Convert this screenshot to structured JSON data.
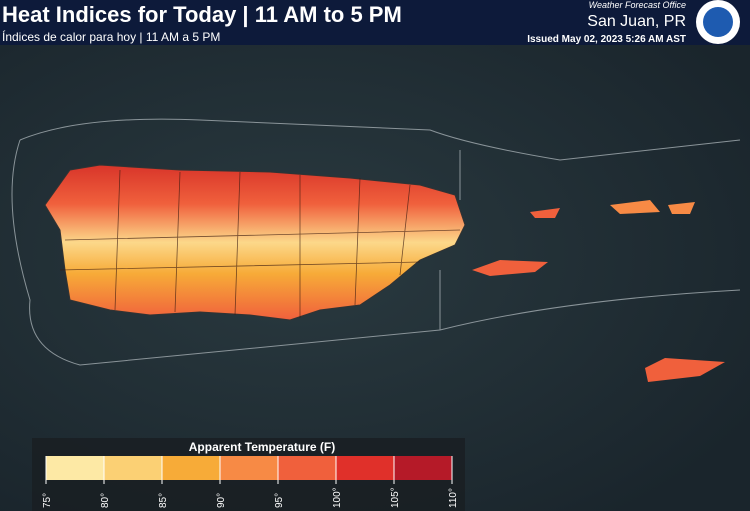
{
  "header": {
    "title": "Heat Indices for Today | 11 AM to 5 PM",
    "subtitle": "Índices de calor para hoy | 11 AM a 5 PM",
    "office": "Weather Forecast Office",
    "location": "San Juan, PR",
    "issued": "Issued May 02, 2023 5:26 AM AST"
  },
  "legend": {
    "title": "Apparent Temperature (F)",
    "colors": [
      "#fde9a5",
      "#fbd074",
      "#f7ab38",
      "#f78a45",
      "#f0603c",
      "#e0302a",
      "#b51a28"
    ],
    "ticks": [
      "75°",
      "80°",
      "85°",
      "90°",
      "95°",
      "100°",
      "105°",
      "110°"
    ]
  }
}
